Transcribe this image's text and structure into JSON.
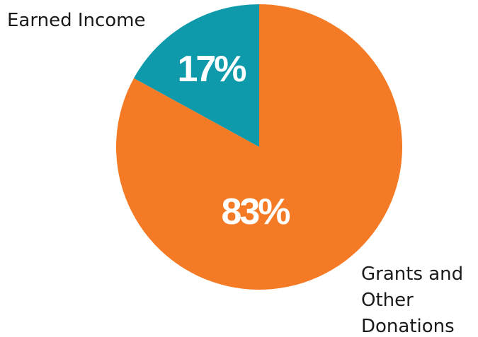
{
  "chart_data": {
    "type": "pie",
    "slices": [
      {
        "label": "Earned Income",
        "label_lines": [
          "Earned Income"
        ],
        "value": 17,
        "display": "17%",
        "color": "#0E9AAA"
      },
      {
        "label": "Grants and Other Donations",
        "label_lines": [
          "Grants and",
          "Other",
          "Donations"
        ],
        "value": 83,
        "display": "83%",
        "color": "#F47A25"
      }
    ],
    "start_angle_deg": 0,
    "direction": "counterclockwise",
    "legend": "none"
  }
}
